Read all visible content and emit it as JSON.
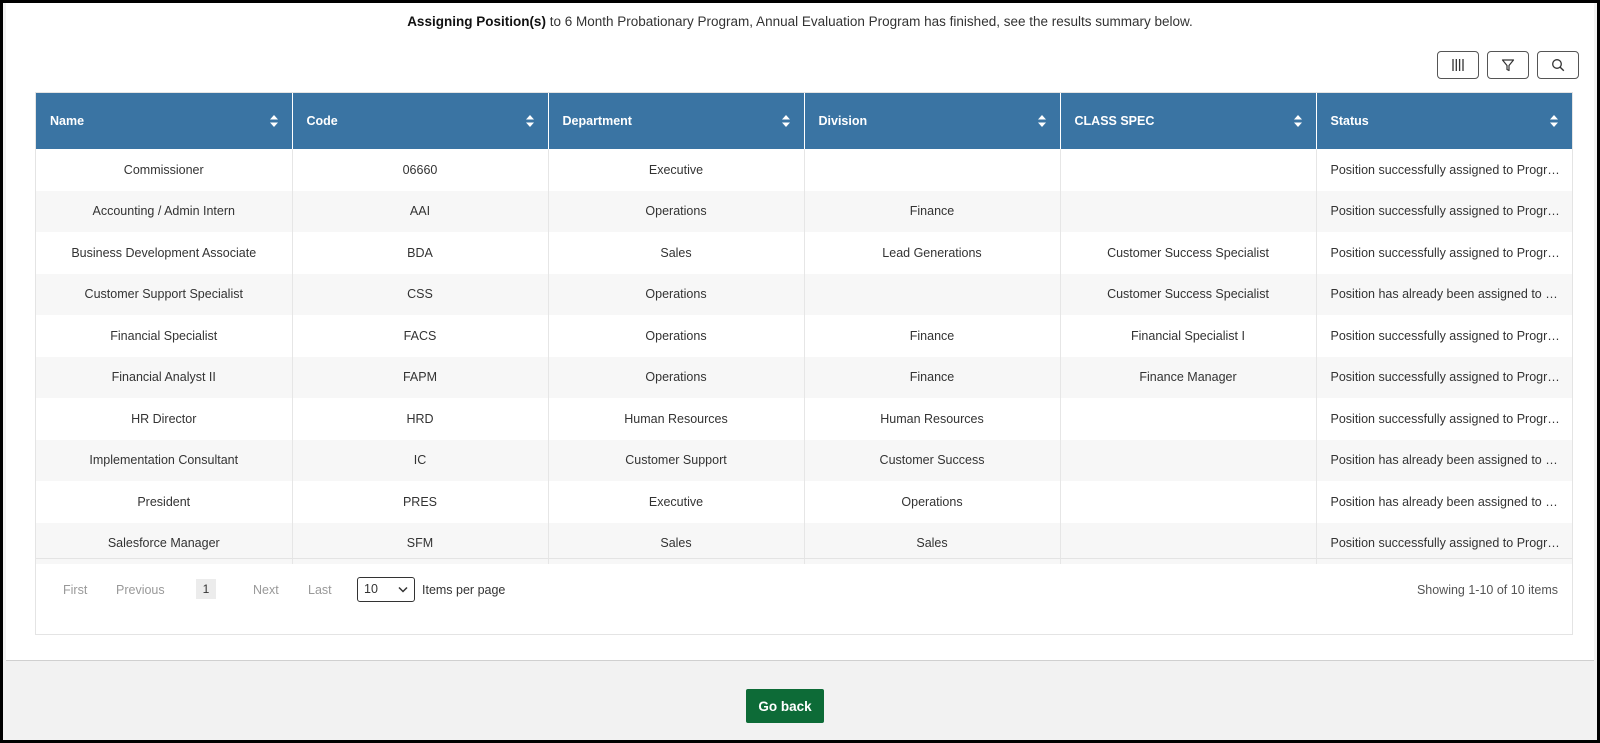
{
  "summary": {
    "bold": "Assigning Position(s)",
    "rest": " to 6 Month Probationary Program, Annual Evaluation Program has finished, see the results summary below."
  },
  "toolbar": {
    "columns_icon": "columns-icon",
    "filter_icon": "filter-icon",
    "search_icon": "search-icon"
  },
  "table": {
    "headers": [
      "Name",
      "Code",
      "Department",
      "Division",
      "CLASS SPEC",
      "Status"
    ],
    "rows": [
      [
        "Commissioner",
        "06660",
        "Executive",
        "",
        "",
        "Position successfully assigned to Progra..."
      ],
      [
        "Accounting / Admin Intern",
        "AAI",
        "Operations",
        "Finance",
        "",
        "Position successfully assigned to Progra..."
      ],
      [
        "Business Development Associate",
        "BDA",
        "Sales",
        "Lead Generations",
        "Customer Success Specialist",
        "Position successfully assigned to Progra..."
      ],
      [
        "Customer Support Specialist",
        "CSS",
        "Operations",
        "",
        "Customer Success Specialist",
        "Position has already been assigned to Pr..."
      ],
      [
        "Financial Specialist",
        "FACS",
        "Operations",
        "Finance",
        "Financial Specialist I",
        "Position successfully assigned to Progra..."
      ],
      [
        "Financial Analyst II",
        "FAPM",
        "Operations",
        "Finance",
        "Finance Manager",
        "Position successfully assigned to Progra..."
      ],
      [
        "HR Director",
        "HRD",
        "Human Resources",
        "Human Resources",
        "",
        "Position successfully assigned to Progra..."
      ],
      [
        "Implementation Consultant",
        "IC",
        "Customer Support",
        "Customer Success",
        "",
        "Position has already been assigned to Pr..."
      ],
      [
        "President",
        "PRES",
        "Executive",
        "Operations",
        "",
        "Position has already been assigned to Pr..."
      ],
      [
        "Salesforce Manager",
        "SFM",
        "Sales",
        "Sales",
        "",
        "Position successfully assigned to Progra..."
      ]
    ]
  },
  "pager": {
    "first": "First",
    "previous": "Previous",
    "current": "1",
    "next": "Next",
    "last": "Last",
    "per_page_value": "10",
    "items_per_page": "Items per page",
    "showing": "Showing 1-10 of 10 items"
  },
  "footer": {
    "go_back": "Go back"
  },
  "colors": {
    "header_bg": "#3a74a3",
    "go_back_bg": "#0d6b37"
  }
}
